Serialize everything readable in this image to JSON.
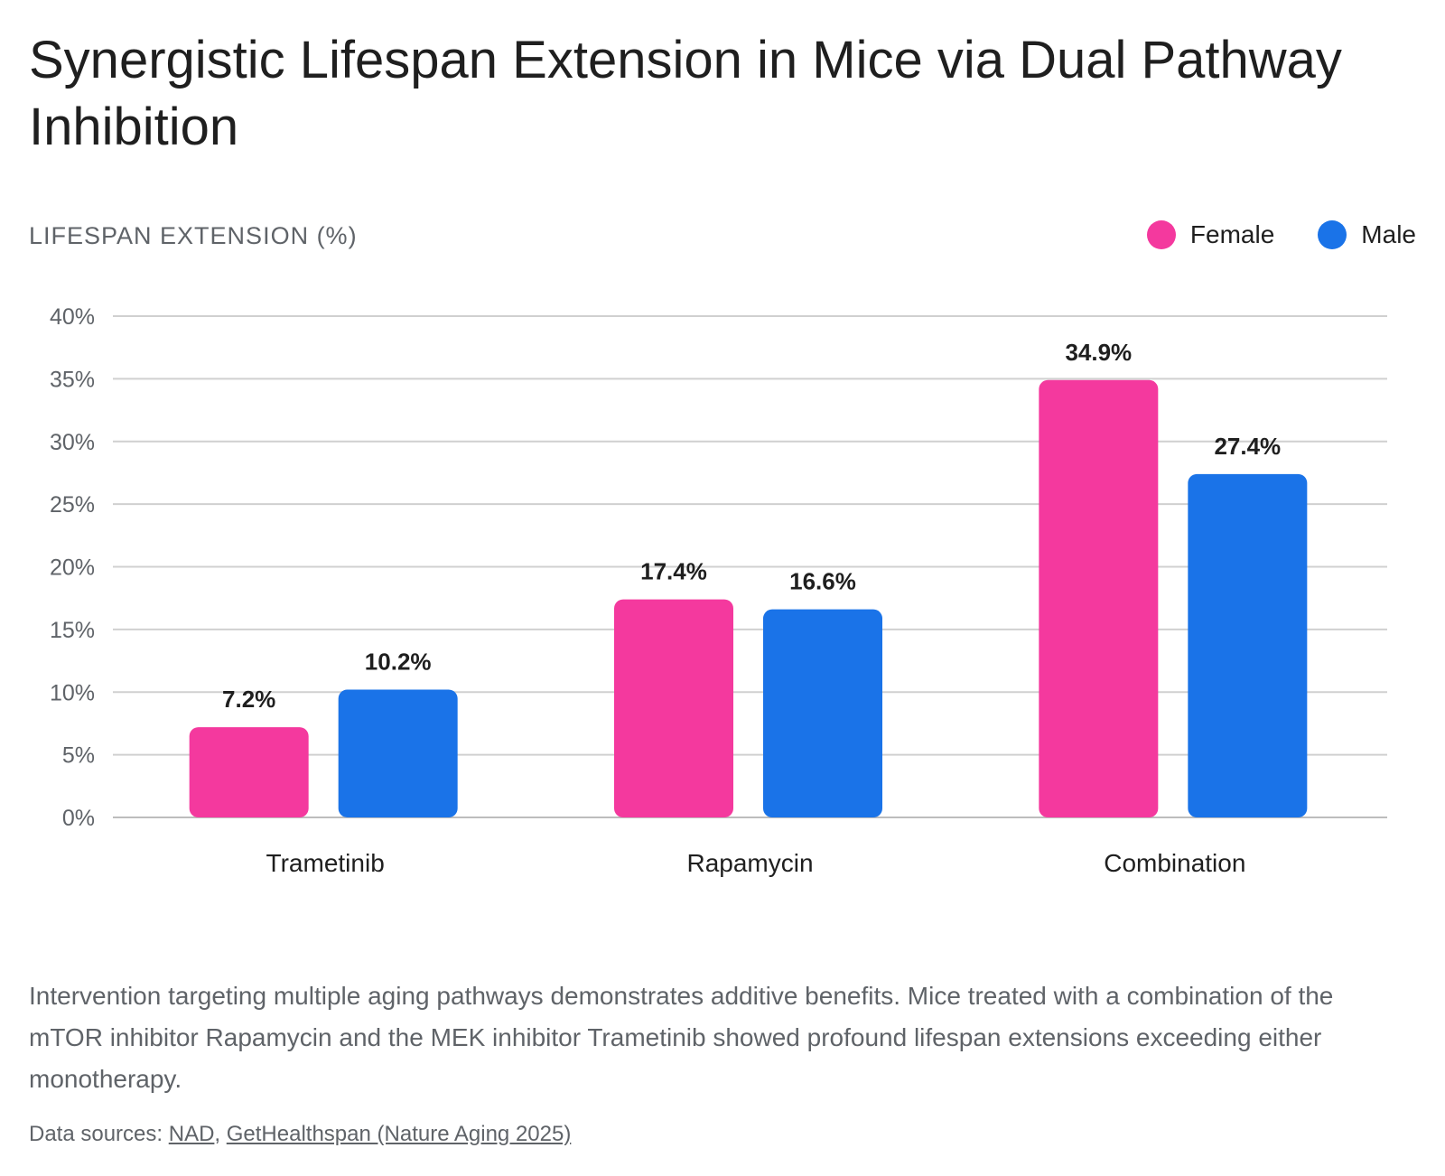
{
  "title": "Synergistic Lifespan Extension in Mice via Dual Pathway Inhibition",
  "y_axis_label": "LIFESPAN EXTENSION (%)",
  "legend": [
    {
      "label": "Female",
      "color": "#f4399e"
    },
    {
      "label": "Male",
      "color": "#1a73e8"
    }
  ],
  "description": "Intervention targeting multiple aging pathways demonstrates additive benefits. Mice treated with a combination of the mTOR inhibitor Rapamycin and the MEK inhibitor Trametinib showed profound lifespan extensions exceeding either monotherapy.",
  "sources": {
    "prefix": "Data sources: ",
    "link1": "NAD",
    "separator": ", ",
    "link2": "GetHealthspan (Nature Aging 2025)"
  },
  "chart_data": {
    "type": "bar",
    "categories": [
      "Trametinib",
      "Rapamycin",
      "Combination"
    ],
    "series": [
      {
        "name": "Female",
        "color": "#f4399e",
        "values": [
          7.2,
          17.4,
          34.9
        ],
        "labels": [
          "7.2%",
          "17.4%",
          "34.9%"
        ]
      },
      {
        "name": "Male",
        "color": "#1a73e8",
        "values": [
          10.2,
          16.6,
          27.4
        ],
        "labels": [
          "10.2%",
          "16.6%",
          "27.4%"
        ]
      }
    ],
    "ylim": [
      0,
      40
    ],
    "yticks": [
      0,
      5,
      10,
      15,
      20,
      25,
      30,
      35,
      40
    ],
    "ytick_labels": [
      "0%",
      "5%",
      "10%",
      "15%",
      "20%",
      "25%",
      "30%",
      "35%",
      "40%"
    ],
    "ylabel": "LIFESPAN EXTENSION (%)",
    "xlabel": "",
    "grid": true,
    "legend_position": "top-right"
  }
}
